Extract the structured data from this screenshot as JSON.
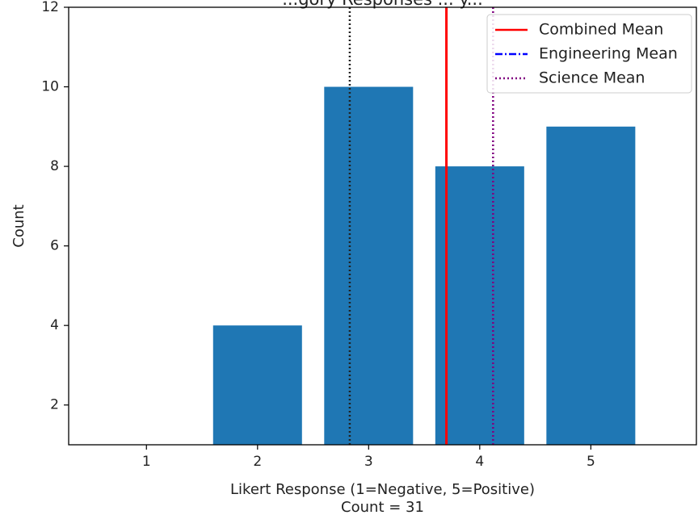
{
  "chart_data": {
    "type": "bar",
    "title": "...gory Responses ... y...",
    "categories": [
      "1",
      "2",
      "3",
      "4",
      "5"
    ],
    "x": [
      1,
      2,
      3,
      4,
      5
    ],
    "values": [
      0,
      4,
      10,
      8,
      9
    ],
    "bar_color": "#1f77b4",
    "xlabel": "Likert Response (1=Negative, 5=Positive)",
    "subtitle": "Count = 31",
    "ylabel": "Count",
    "xlim": [
      0.3,
      5.95
    ],
    "ylim": [
      1,
      12
    ],
    "yticks": [
      2,
      4,
      6,
      8,
      10,
      12
    ],
    "grid": false,
    "legend": {
      "placement": "top-right",
      "entries": [
        {
          "label": "Combined Mean",
          "color": "#ff0000",
          "style": "solid"
        },
        {
          "label": "Engineering Mean",
          "color": "#0000ff",
          "style": "dashdot"
        },
        {
          "label": "Science Mean",
          "color": "#800080",
          "style": "dotted"
        }
      ]
    },
    "mean_lines": [
      {
        "name": "Combined Mean",
        "x": 3.7,
        "color": "#ff0000",
        "style": "solid"
      },
      {
        "name": "Science Mean",
        "x": 4.12,
        "color": "#800080",
        "style": "dotted"
      },
      {
        "name": "",
        "x": 2.83,
        "color": "#222222",
        "style": "dotted"
      }
    ]
  }
}
